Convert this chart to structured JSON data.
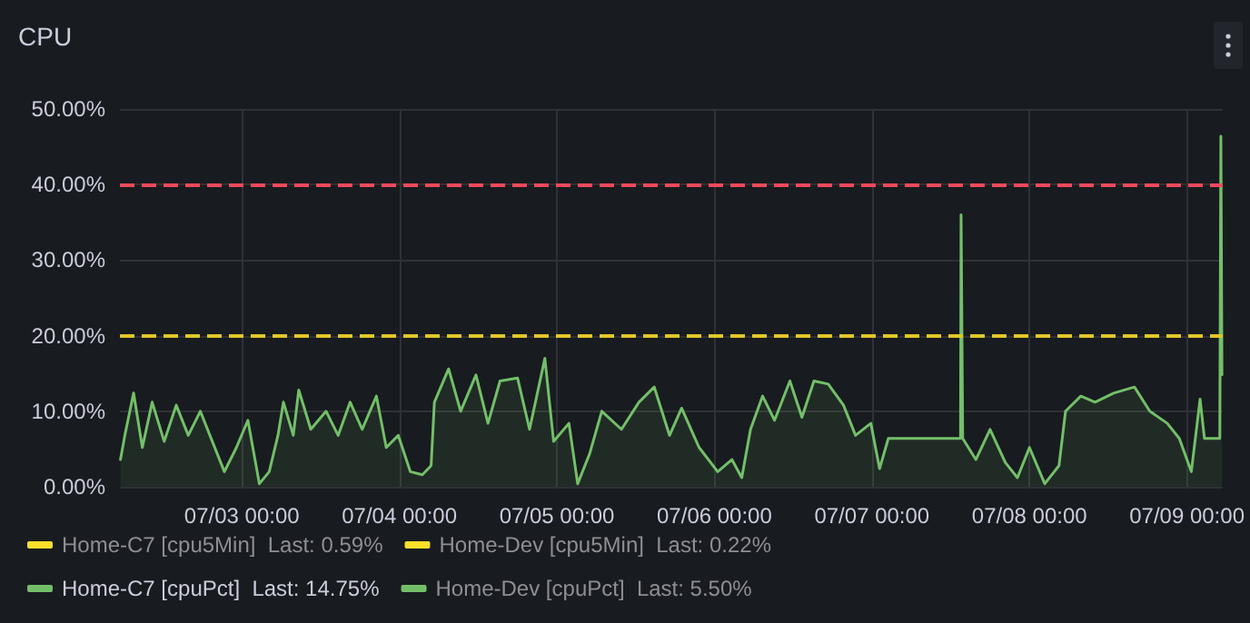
{
  "chart_data": {
    "type": "area",
    "title": "CPU",
    "xlim": [
      "--07-02T05:25",
      "--07-09T05:25"
    ],
    "xticks": [
      {
        "value": "--07-03T00:00",
        "label": "07/03 00:00"
      },
      {
        "value": "--07-04T00:00",
        "label": "07/04 00:00"
      },
      {
        "value": "--07-05T00:00",
        "label": "07/05 00:00"
      },
      {
        "value": "--07-06T00:00",
        "label": "07/06 00:00"
      },
      {
        "value": "--07-07T00:00",
        "label": "07/07 00:00"
      },
      {
        "value": "--07-08T00:00",
        "label": "07/08 00:00"
      },
      {
        "value": "--07-09T00:00",
        "label": "07/09 00:00"
      }
    ],
    "ylim": [
      0,
      50
    ],
    "yticks": [
      {
        "value": 0,
        "label": "0.00%"
      },
      {
        "value": 10,
        "label": "10.00%"
      },
      {
        "value": 20,
        "label": "20.00%"
      },
      {
        "value": 30,
        "label": "30.00%"
      },
      {
        "value": 40,
        "label": "40.00%"
      },
      {
        "value": 50,
        "label": "50.00%"
      }
    ],
    "grid": true,
    "legend": "bottom",
    "marker": "none",
    "line_style": "solid",
    "ref_lines": [
      {
        "axis": "y",
        "value": 40,
        "color": "#f2495c",
        "line_style": "dashed"
      },
      {
        "axis": "y",
        "value": 20,
        "color": "#e0c62a",
        "line_style": "dashed"
      }
    ],
    "series": [
      {
        "name": "Home-C7 [cpu5Min]  Last: 0.59%",
        "color": "#fade2a"
      },
      {
        "name": "Home-Dev [cpu5Min]  Last: 0.22%",
        "color": "#fade2a"
      },
      {
        "name": "Home-C7 [cpuPct]  Last: 14.75%",
        "color": "#73bf69",
        "x": [
          "--07-02T05:30",
          "--07-02T06:10",
          "--07-02T07:30",
          "--07-02T08:50",
          "--07-02T10:20",
          "--07-02T12:10",
          "--07-02T14:00",
          "--07-02T15:50",
          "--07-02T17:40",
          "--07-02T19:30",
          "--07-02T21:20",
          "--07-02T23:10",
          "--07-03T00:55",
          "--07-03T02:40",
          "--07-03T04:10",
          "--07-03T05:30",
          "--07-03T06:20",
          "--07-03T07:50",
          "--07-03T08:40",
          "--07-03T10:30",
          "--07-03T12:50",
          "--07-03T14:40",
          "--07-03T16:30",
          "--07-03T18:20",
          "--07-03T20:30",
          "--07-03T22:00",
          "--07-03T23:50",
          "--07-04T01:40",
          "--07-04T03:30",
          "--07-04T04:50",
          "--07-04T05:20",
          "--07-04T07:30",
          "--07-04T09:20",
          "--07-04T11:40",
          "--07-04T13:30",
          "--07-04T15:20",
          "--07-04T18:00",
          "--07-04T19:50",
          "--07-04T22:10",
          "--07-04T23:30",
          "--07-05T01:50",
          "--07-05T03:10",
          "--07-05T05:00",
          "--07-05T06:50",
          "--07-05T09:50",
          "--07-05T12:30",
          "--07-05T14:50",
          "--07-05T17:10",
          "--07-05T19:00",
          "--07-05T21:40",
          "--07-06T00:30",
          "--07-06T02:40",
          "--07-06T04:10",
          "--07-06T05:30",
          "--07-06T07:20",
          "--07-06T09:10",
          "--07-06T11:30",
          "--07-06T13:20",
          "--07-06T15:10",
          "--07-06T17:20",
          "--07-06T19:40",
          "--07-06T21:30",
          "--07-06T23:50",
          "--07-07T01:10",
          "--07-07T02:30",
          "--07-07T13:30",
          "--07-07T13:35",
          "--07-07T13:50",
          "--07-07T15:50",
          "--07-07T18:00",
          "--07-07T20:20",
          "--07-07T22:10",
          "--07-08T00:00",
          "--07-08T02:20",
          "--07-08T04:30",
          "--07-08T05:30",
          "--07-08T07:50",
          "--07-08T10:00",
          "--07-08T12:50",
          "--07-08T16:00",
          "--07-08T18:20",
          "--07-08T21:00",
          "--07-08T22:50",
          "--07-09T00:40",
          "--07-09T02:00",
          "--07-09T02:40",
          "--07-09T05:00",
          "--07-09T05:10",
          "--07-09T05:20"
        ],
        "values": [
          3.6,
          6.8,
          12.4,
          5.2,
          11.2,
          6,
          10.8,
          6.8,
          10,
          6,
          2,
          5.2,
          8.8,
          0.4,
          2,
          6.8,
          11.2,
          6.8,
          12.8,
          7.6,
          10,
          6.8,
          11.2,
          7.6,
          12,
          5.2,
          6.8,
          2,
          1.6,
          2.8,
          11.2,
          15.6,
          10,
          14.8,
          8.4,
          14,
          14.4,
          7.6,
          17,
          6,
          8.4,
          0.4,
          4.4,
          10,
          7.6,
          11.2,
          13.2,
          6.8,
          10.4,
          5.2,
          2,
          3.6,
          1.2,
          7.6,
          12,
          8.8,
          14,
          9.2,
          14,
          13.6,
          10.8,
          6.8,
          8.4,
          2.4,
          6.4,
          6.4,
          36,
          6.4,
          3.6,
          7.6,
          3.2,
          1.2,
          5.2,
          0.4,
          2.8,
          10,
          12,
          11.2,
          12.4,
          13.2,
          10,
          8.4,
          6.4,
          2,
          11.6,
          6.4,
          6.4,
          46.4,
          14.8
        ]
      },
      {
        "name": "Home-Dev [cpuPct]  Last: 5.50%",
        "color": "#73bf69"
      }
    ]
  }
}
